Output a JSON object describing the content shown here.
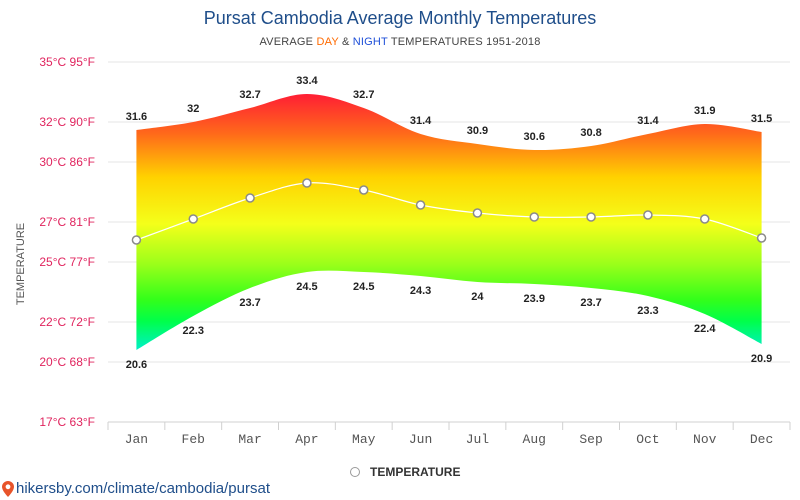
{
  "header": {
    "title": "Pursat Cambodia Average Monthly Temperatures",
    "subtitle_prefix": "AVERAGE ",
    "subtitle_day": "DAY",
    "subtitle_amp": " & ",
    "subtitle_night": "NIGHT",
    "subtitle_suffix": " TEMPERATURES 1951-2018"
  },
  "legend": {
    "label": "TEMPERATURE"
  },
  "source": {
    "text": "hikersby.com/climate/cambodia/pursat"
  },
  "colors": {
    "title": "#1f4e8a",
    "axis_label": "#e0245e",
    "day": "#ff6a00",
    "night": "#1e4fd8",
    "grid": "#e6e6e6"
  },
  "chart_data": {
    "type": "area",
    "ylabel": "TEMPERATURE",
    "y_ticks": [
      {
        "value": 17,
        "label": "17°C 63°F"
      },
      {
        "value": 20,
        "label": "20°C 68°F"
      },
      {
        "value": 22,
        "label": "22°C 72°F"
      },
      {
        "value": 25,
        "label": "25°C 77°F"
      },
      {
        "value": 27,
        "label": "27°C 81°F"
      },
      {
        "value": 30,
        "label": "30°C 86°F"
      },
      {
        "value": 32,
        "label": "32°C 90°F"
      },
      {
        "value": 35,
        "label": "35°C 95°F"
      }
    ],
    "ylim": [
      17,
      35
    ],
    "categories": [
      "Jan",
      "Feb",
      "Mar",
      "Apr",
      "May",
      "Jun",
      "Jul",
      "Aug",
      "Sep",
      "Oct",
      "Nov",
      "Dec"
    ],
    "series": [
      {
        "name": "DAY",
        "values": [
          31.6,
          32,
          32.7,
          33.4,
          32.7,
          31.4,
          30.9,
          30.6,
          30.8,
          31.4,
          31.9,
          31.5
        ]
      },
      {
        "name": "NIGHT",
        "values": [
          20.6,
          22.3,
          23.7,
          24.5,
          24.5,
          24.3,
          24,
          23.9,
          23.7,
          23.3,
          22.4,
          20.9
        ]
      },
      {
        "name": "TEMPERATURE",
        "values": [
          26.1,
          27.15,
          28.2,
          28.95,
          28.6,
          27.85,
          27.45,
          27.25,
          27.25,
          27.35,
          27.15,
          26.2
        ]
      }
    ],
    "grid": true,
    "legend_position": "bottom-center"
  }
}
